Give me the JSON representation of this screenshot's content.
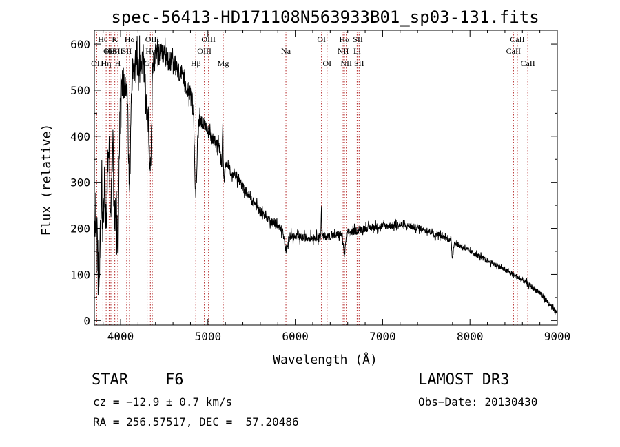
{
  "chart_data": {
    "type": "line",
    "title": "spec-56413-HD171108N563933B01_sp03-131.fits",
    "xlabel": "Wavelength (Å)",
    "ylabel": "Flux (relative)",
    "xlim": [
      3700,
      9000
    ],
    "ylim": [
      -10,
      630
    ],
    "x_ticks": [
      4000,
      5000,
      6000,
      7000,
      8000,
      9000
    ],
    "y_ticks": [
      0,
      100,
      200,
      300,
      400,
      500,
      600
    ],
    "grid": false,
    "line_color": "#000000",
    "marker_color": "#b22222",
    "spectral_lines": [
      {
        "label": "OII",
        "wavelength": 3727,
        "row": 2
      },
      {
        "label": "Hθ",
        "wavelength": 3798,
        "row": 0
      },
      {
        "label": "Hη",
        "wavelength": 3835,
        "row": 2
      },
      {
        "label": "OII",
        "wavelength": 3869,
        "row": 1
      },
      {
        "label": "HeI",
        "wavelength": 3889,
        "row": 1
      },
      {
        "label": "K",
        "wavelength": 3934,
        "row": 0
      },
      {
        "label": "SII",
        "wavelength": 3970,
        "row": 1
      },
      {
        "label": "H",
        "wavelength": 3968,
        "row": 2
      },
      {
        "label": "Hδ",
        "wavelength": 4102,
        "row": 0
      },
      {
        "label": "SII",
        "wavelength": 4070,
        "row": 1
      },
      {
        "label": "G",
        "wavelength": 4304,
        "row": 2
      },
      {
        "label": "OIII",
        "wavelength": 4363,
        "row": 0
      },
      {
        "label": "Hγ",
        "wavelength": 4341,
        "row": 1
      },
      {
        "label": "Hβ",
        "wavelength": 4861,
        "row": 2
      },
      {
        "label": "OIII",
        "wavelength": 5007,
        "row": 0
      },
      {
        "label": "OIII",
        "wavelength": 4959,
        "row": 1
      },
      {
        "label": "Mg",
        "wavelength": 5175,
        "row": 2
      },
      {
        "label": "Na",
        "wavelength": 5893,
        "row": 1
      },
      {
        "label": "OI",
        "wavelength": 6300,
        "row": 0
      },
      {
        "label": "OI",
        "wavelength": 6364,
        "row": 2
      },
      {
        "label": "Hα",
        "wavelength": 6563,
        "row": 0
      },
      {
        "label": "NII",
        "wavelength": 6548,
        "row": 1
      },
      {
        "label": "NII",
        "wavelength": 6584,
        "row": 2
      },
      {
        "label": "SII",
        "wavelength": 6717,
        "row": 0
      },
      {
        "label": "Li",
        "wavelength": 6708,
        "row": 1
      },
      {
        "label": "SII",
        "wavelength": 6731,
        "row": 2
      },
      {
        "label": "CaII",
        "wavelength": 8542,
        "row": 0
      },
      {
        "label": "CaII",
        "wavelength": 8498,
        "row": 1
      },
      {
        "label": "CaII",
        "wavelength": 8662,
        "row": 2
      }
    ],
    "continuum": [
      [
        3700,
        200
      ],
      [
        3800,
        330
      ],
      [
        3900,
        420
      ],
      [
        4000,
        500
      ],
      [
        4100,
        545
      ],
      [
        4200,
        560
      ],
      [
        4300,
        565
      ],
      [
        4400,
        575
      ],
      [
        4500,
        575
      ],
      [
        4600,
        555
      ],
      [
        4700,
        530
      ],
      [
        4800,
        490
      ],
      [
        4900,
        440
      ],
      [
        5000,
        410
      ],
      [
        5100,
        385
      ],
      [
        5200,
        350
      ],
      [
        5300,
        320
      ],
      [
        5400,
        290
      ],
      [
        5500,
        262
      ],
      [
        5600,
        238
      ],
      [
        5700,
        220
      ],
      [
        5800,
        205
      ],
      [
        5900,
        188
      ],
      [
        6000,
        180
      ],
      [
        6200,
        180
      ],
      [
        6400,
        183
      ],
      [
        6600,
        190
      ],
      [
        6800,
        200
      ],
      [
        7000,
        205
      ],
      [
        7200,
        207
      ],
      [
        7400,
        202
      ],
      [
        7600,
        190
      ],
      [
        7800,
        172
      ],
      [
        8000,
        150
      ],
      [
        8200,
        130
      ],
      [
        8400,
        110
      ],
      [
        8600,
        88
      ],
      [
        8800,
        60
      ],
      [
        8900,
        38
      ],
      [
        9000,
        12
      ]
    ],
    "absorption_features": [
      [
        3750,
        180,
        14
      ],
      [
        3800,
        120,
        10
      ],
      [
        3835,
        150,
        10
      ],
      [
        3889,
        170,
        10
      ],
      [
        3934,
        230,
        12
      ],
      [
        3968,
        300,
        12
      ],
      [
        4102,
        240,
        14
      ],
      [
        4304,
        120,
        16
      ],
      [
        4341,
        240,
        14
      ],
      [
        4861,
        180,
        14
      ],
      [
        5175,
        60,
        16
      ],
      [
        5270,
        20,
        10
      ],
      [
        5893,
        35,
        18
      ],
      [
        6563,
        45,
        12
      ],
      [
        7600,
        12,
        8
      ],
      [
        7800,
        35,
        8
      ]
    ],
    "noise_amplitude": [
      [
        3700,
        70
      ],
      [
        3900,
        60
      ],
      [
        4200,
        40
      ],
      [
        4800,
        22
      ],
      [
        5200,
        14
      ],
      [
        6000,
        11
      ],
      [
        7000,
        10
      ],
      [
        8000,
        7
      ],
      [
        8600,
        7
      ],
      [
        9000,
        8
      ]
    ],
    "emission_features": [
      [
        5170,
        120,
        5
      ],
      [
        6300,
        60,
        4
      ]
    ]
  },
  "info": {
    "class_label": "STAR",
    "subclass": "F6",
    "survey": "LAMOST DR3",
    "cz": "cz = −12.9 ± 0.7 km/s",
    "obs_date": "Obs−Date: 20130430",
    "coords": "RA = 256.57517, DEC =  57.20486"
  }
}
